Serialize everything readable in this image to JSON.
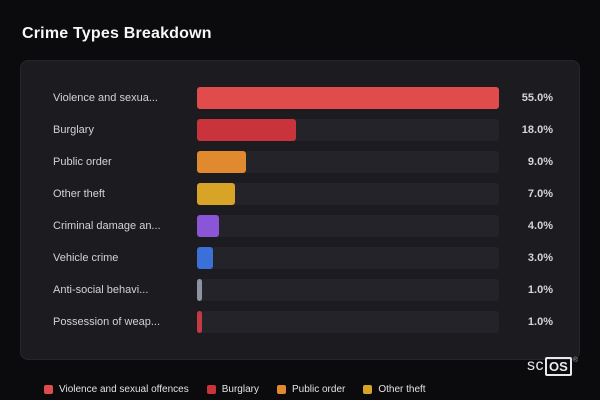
{
  "page": {
    "title": "Crime Types Breakdown"
  },
  "chart_data": {
    "type": "bar",
    "orientation": "horizontal",
    "title": "Crime Types Breakdown",
    "categories": [
      "Violence and sexua...",
      "Burglary",
      "Public order",
      "Other theft",
      "Criminal damage an...",
      "Vehicle crime",
      "Anti-social behavi...",
      "Possession of weap..."
    ],
    "values": [
      55.0,
      18.0,
      9.0,
      7.0,
      4.0,
      3.0,
      1.0,
      1.0
    ],
    "value_labels": [
      "55.0%",
      "18.0%",
      "9.0%",
      "7.0%",
      "4.0%",
      "3.0%",
      "1.0%",
      "1.0%"
    ],
    "bar_colors": [
      "#e04c4c",
      "#c8333c",
      "#e0892e",
      "#d7a428",
      "#8b55d8",
      "#3b70d8",
      "#8d93a0",
      "#c43a44"
    ],
    "value_axis_max": 55.0,
    "grid": false,
    "legend_position": "bottom",
    "legend": [
      {
        "label": "Violence and sexual offences",
        "color": "#e04c4c"
      },
      {
        "label": "Burglary",
        "color": "#c8333c"
      },
      {
        "label": "Public order",
        "color": "#e0892e"
      },
      {
        "label": "Other theft",
        "color": "#d7a428"
      }
    ]
  },
  "branding": {
    "prefix": "sc",
    "suffix": "OS",
    "mark": "®"
  },
  "colors": {
    "background": "#0b0b0e",
    "card": "#1b1b20",
    "track": "#232329",
    "label_text": "#d2d3d7",
    "value_text": "#d4d5d9"
  }
}
